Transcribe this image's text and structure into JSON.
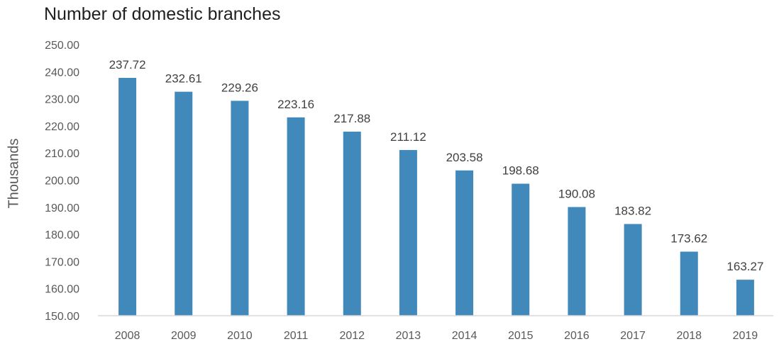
{
  "chart_data": {
    "type": "bar",
    "title": "Number of domestic branches",
    "xlabel": "",
    "ylabel": "Thousands",
    "categories": [
      "2008",
      "2009",
      "2010",
      "2011",
      "2012",
      "2013",
      "2014",
      "2015",
      "2016",
      "2017",
      "2018",
      "2019"
    ],
    "values": [
      237.72,
      232.61,
      229.26,
      223.16,
      217.88,
      211.12,
      203.58,
      198.68,
      190.08,
      183.82,
      173.62,
      163.27
    ],
    "data_labels": [
      "237.72",
      "232.61",
      "229.26",
      "223.16",
      "217.88",
      "211.12",
      "203.58",
      "198.68",
      "190.08",
      "183.82",
      "173.62",
      "163.27"
    ],
    "y_ticks": [
      "150.00",
      "160.00",
      "170.00",
      "180.00",
      "190.00",
      "200.00",
      "210.00",
      "220.00",
      "230.00",
      "240.00",
      "250.00"
    ],
    "ylim": [
      150,
      250
    ],
    "grid": false,
    "legend": "none",
    "bar_color": "#4189BA",
    "axis_color": "#D9D9D9"
  }
}
